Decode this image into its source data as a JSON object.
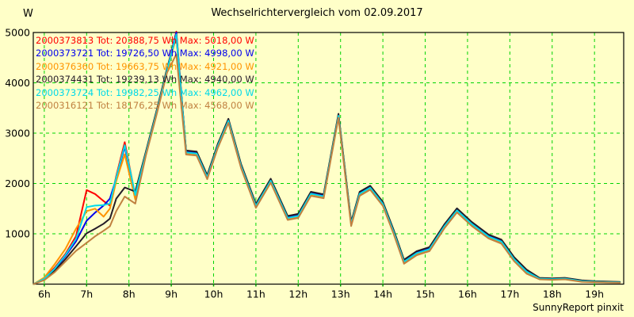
{
  "ui": {
    "title": "Wechselrichtervergleich vom 02.09.2017",
    "unit_label": "W",
    "footer_credit": "SunnyReport pinxit"
  },
  "colors": {
    "background": "#FFFFC8",
    "grid": "#00D400",
    "axis": "#000000",
    "tick": "#009900",
    "text": "#000000"
  },
  "chart_data": {
    "type": "line",
    "title": "Wechselrichtervergleich vom 02.09.2017",
    "xlabel": "",
    "ylabel": "W",
    "x_unit": "hour_of_day",
    "x_range": [
      5.74,
      19.69
    ],
    "y_range": [
      0,
      5000
    ],
    "grid": true,
    "legend_position": "top-left",
    "x_ticks": [
      {
        "value": 6,
        "label": "6h"
      },
      {
        "value": 7,
        "label": "7h"
      },
      {
        "value": 8,
        "label": "8h"
      },
      {
        "value": 9,
        "label": "9h"
      },
      {
        "value": 10,
        "label": "10h"
      },
      {
        "value": 11,
        "label": "11h"
      },
      {
        "value": 12,
        "label": "12h"
      },
      {
        "value": 13,
        "label": "13h"
      },
      {
        "value": 14,
        "label": "14h"
      },
      {
        "value": 15,
        "label": "15h"
      },
      {
        "value": 16,
        "label": "16h"
      },
      {
        "value": 17,
        "label": "17h"
      },
      {
        "value": 18,
        "label": "18h"
      },
      {
        "value": 19,
        "label": "19h"
      }
    ],
    "y_ticks": [
      {
        "value": 1000,
        "label": "1000"
      },
      {
        "value": 2000,
        "label": "2000"
      },
      {
        "value": 3000,
        "label": "3000"
      },
      {
        "value": 4000,
        "label": "4000"
      },
      {
        "value": 5000,
        "label": "5000"
      }
    ],
    "x": [
      5.75,
      6.0,
      6.25,
      6.5,
      6.75,
      7.0,
      7.2,
      7.4,
      7.55,
      7.7,
      7.9,
      8.15,
      8.4,
      8.65,
      8.9,
      9.12,
      9.35,
      9.6,
      9.85,
      10.1,
      10.35,
      10.65,
      11.0,
      11.35,
      11.75,
      12.0,
      12.3,
      12.6,
      12.95,
      13.25,
      13.45,
      13.7,
      14.0,
      14.25,
      14.5,
      14.8,
      15.1,
      15.45,
      15.75,
      16.1,
      16.5,
      16.8,
      17.1,
      17.4,
      17.7,
      18.0,
      18.3,
      18.7,
      19.0,
      19.6
    ],
    "series": [
      {
        "name": "2000373813",
        "color": "#FF0000",
        "total_wh": "20388,75",
        "max_w": "5018,00",
        "legend": "2000373813 Tot: 20388,75 Wh Max: 5018,00 W",
        "values": [
          0,
          110,
          330,
          600,
          950,
          1870,
          1790,
          1650,
          1560,
          2150,
          2820,
          1750,
          2620,
          3420,
          4270,
          5018,
          2640,
          2620,
          2150,
          2770,
          3270,
          2370,
          1580,
          2080,
          1340,
          1380,
          1820,
          1770,
          3370,
          1220,
          1820,
          1940,
          1620,
          1070,
          470,
          640,
          720,
          1170,
          1490,
          1220,
          970,
          870,
          520,
          270,
          120,
          110,
          120,
          70,
          55,
          40
        ]
      },
      {
        "name": "2000373721",
        "color": "#0000EE",
        "total_wh": "19726,50",
        "max_w": "4998,00",
        "legend": "2000373721 Tot: 19726,50 Wh Max: 4998,00 W",
        "values": [
          0,
          100,
          300,
          560,
          850,
          1260,
          1420,
          1560,
          1700,
          2100,
          2730,
          1720,
          2605,
          3405,
          4255,
          4998,
          2625,
          2605,
          2135,
          2755,
          3255,
          2355,
          1565,
          2065,
          1325,
          1365,
          1805,
          1755,
          3355,
          1205,
          1805,
          1925,
          1605,
          1055,
          455,
          625,
          705,
          1155,
          1475,
          1205,
          955,
          855,
          505,
          255,
          112,
          102,
          112,
          62,
          52,
          36
        ]
      },
      {
        "name": "2000376360",
        "color": "#FF9300",
        "total_wh": "19663,75",
        "max_w": "4921,00",
        "legend": "2000376360 Tot: 19663,75 Wh Max: 4921,00 W",
        "values": [
          0,
          130,
          400,
          700,
          1100,
          1450,
          1500,
          1340,
          1500,
          2050,
          2580,
          1680,
          2585,
          3385,
          4235,
          4921,
          2605,
          2585,
          2115,
          2735,
          3235,
          2335,
          1545,
          2045,
          1305,
          1345,
          1785,
          1735,
          3335,
          1185,
          1785,
          1905,
          1585,
          1035,
          435,
          605,
          685,
          1135,
          1455,
          1185,
          935,
          835,
          485,
          235,
          105,
          95,
          105,
          55,
          45,
          30
        ]
      },
      {
        "name": "2000374431",
        "color": "#241C28",
        "total_wh": "19239,13",
        "max_w": "4940,00",
        "legend": "2000374431 Tot: 19239,13 Wh Max: 4940,00 W",
        "values": [
          0,
          90,
          270,
          500,
          750,
          1010,
          1100,
          1200,
          1300,
          1700,
          1920,
          1840,
          2635,
          3435,
          4285,
          4940,
          2655,
          2635,
          2165,
          2785,
          3285,
          2385,
          1595,
          2095,
          1355,
          1395,
          1835,
          1785,
          3385,
          1235,
          1835,
          1955,
          1635,
          1085,
          485,
          655,
          735,
          1185,
          1505,
          1235,
          985,
          885,
          535,
          285,
          125,
          115,
          125,
          75,
          60,
          42
        ]
      },
      {
        "name": "2000373724",
        "color": "#00D9E9",
        "total_wh": "19982,25",
        "max_w": "4962,00",
        "legend": "2000373724 Tot: 19982,25 Wh Max: 4962,00 W",
        "values": [
          0,
          105,
          310,
          580,
          900,
          1530,
          1560,
          1570,
          1600,
          2120,
          2760,
          1770,
          2595,
          3395,
          4245,
          4962,
          2615,
          2595,
          2125,
          2745,
          3245,
          2345,
          1555,
          2055,
          1315,
          1355,
          1795,
          1745,
          3345,
          1195,
          1795,
          1915,
          1595,
          1045,
          445,
          615,
          695,
          1145,
          1465,
          1195,
          945,
          845,
          495,
          245,
          108,
          98,
          108,
          58,
          48,
          33
        ]
      },
      {
        "name": "2000316121",
        "color": "#C08040",
        "total_wh": "18176,25",
        "max_w": "4568,00",
        "legend": "2000316121 Tot: 18176,25 Wh Max: 4568,00 W",
        "values": [
          0,
          80,
          240,
          450,
          660,
          820,
          950,
          1060,
          1150,
          1450,
          1740,
          1600,
          2555,
          3355,
          4205,
          4568,
          2575,
          2555,
          2085,
          2705,
          3205,
          2305,
          1515,
          2015,
          1275,
          1315,
          1755,
          1705,
          3305,
          1155,
          1755,
          1875,
          1555,
          1005,
          405,
          575,
          655,
          1105,
          1425,
          1155,
          905,
          805,
          455,
          205,
          95,
          85,
          95,
          45,
          38,
          25
        ]
      }
    ]
  }
}
